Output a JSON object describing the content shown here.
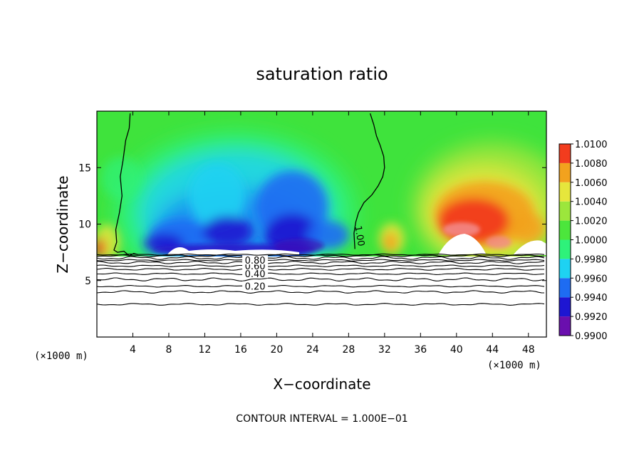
{
  "chart_data": {
    "type": "heatmap",
    "title": "saturation ratio",
    "xlabel": "X−coordinate",
    "ylabel": "Z−coordinate",
    "x_unit_left": "(×1000 m)",
    "x_unit_right": "(×1000 m)",
    "xlim": [
      0,
      50
    ],
    "ylim": [
      0,
      20
    ],
    "x_ticks": [
      4,
      8,
      12,
      16,
      20,
      24,
      28,
      32,
      36,
      40,
      44,
      48
    ],
    "x_tick_labels": [
      "4",
      "8",
      "12",
      "16",
      "20",
      "24",
      "28",
      "32",
      "36",
      "40",
      "44",
      "48"
    ],
    "y_ticks": [
      5,
      10,
      15
    ],
    "y_tick_labels": [
      "5",
      "10",
      "15"
    ],
    "colorbar": {
      "levels": [
        0.99,
        0.992,
        0.994,
        0.996,
        0.998,
        1.0,
        1.002,
        1.004,
        1.006,
        1.008,
        1.01
      ],
      "labels": [
        "0.9900",
        "0.9920",
        "0.9940",
        "0.9960",
        "0.9980",
        "1.0000",
        "1.0020",
        "1.0040",
        "1.0060",
        "1.0080",
        "1.0100"
      ],
      "colors": [
        "#6a0fae",
        "#1e16d2",
        "#1e6cf2",
        "#1ed2f2",
        "#2ef27a",
        "#4ce63c",
        "#9ce63c",
        "#e6e63c",
        "#f2a21e",
        "#f23c1e",
        "#f28c8c"
      ]
    },
    "contour_line_1_00": {
      "label": "1.00",
      "segments": [
        {
          "x": [
            3.7,
            3.6,
            3.2,
            2.9,
            2.6,
            2.8,
            2.5,
            2.1,
            2.2,
            1.9,
            2.3,
            3.0,
            3.6,
            4.1,
            4.6
          ],
          "z": [
            19.8,
            18.5,
            17.4,
            15.6,
            14.2,
            12.5,
            11.0,
            9.5,
            8.4,
            7.7,
            7.5,
            7.6,
            7.2,
            7.4,
            7.3
          ]
        },
        {
          "x": [
            30.4,
            30.8,
            31.1,
            31.5,
            31.9,
            32.0,
            31.8,
            31.3,
            30.6,
            29.7,
            29.1,
            28.8,
            28.6,
            28.7
          ],
          "z": [
            19.8,
            18.8,
            17.8,
            17.0,
            16.0,
            15.0,
            14.2,
            13.4,
            12.6,
            11.9,
            11.0,
            10.2,
            9.2,
            7.8
          ]
        }
      ]
    },
    "stratified_contours": [
      {
        "value": 0.2,
        "label": "0.20",
        "z": 4.5
      },
      {
        "value": 0.4,
        "label": "0.40",
        "z": 5.6
      },
      {
        "value": 0.6,
        "label": "0.60",
        "z": 6.3
      },
      {
        "value": 0.8,
        "label": "0.80",
        "z": 6.8
      }
    ],
    "other_contours_z": [
      2.9,
      4.0,
      5.1,
      6.0,
      6.6,
      7.0,
      7.2
    ],
    "cloud_base_z": 7.3
  },
  "footer": "CONTOUR INTERVAL = 1.000E−01"
}
